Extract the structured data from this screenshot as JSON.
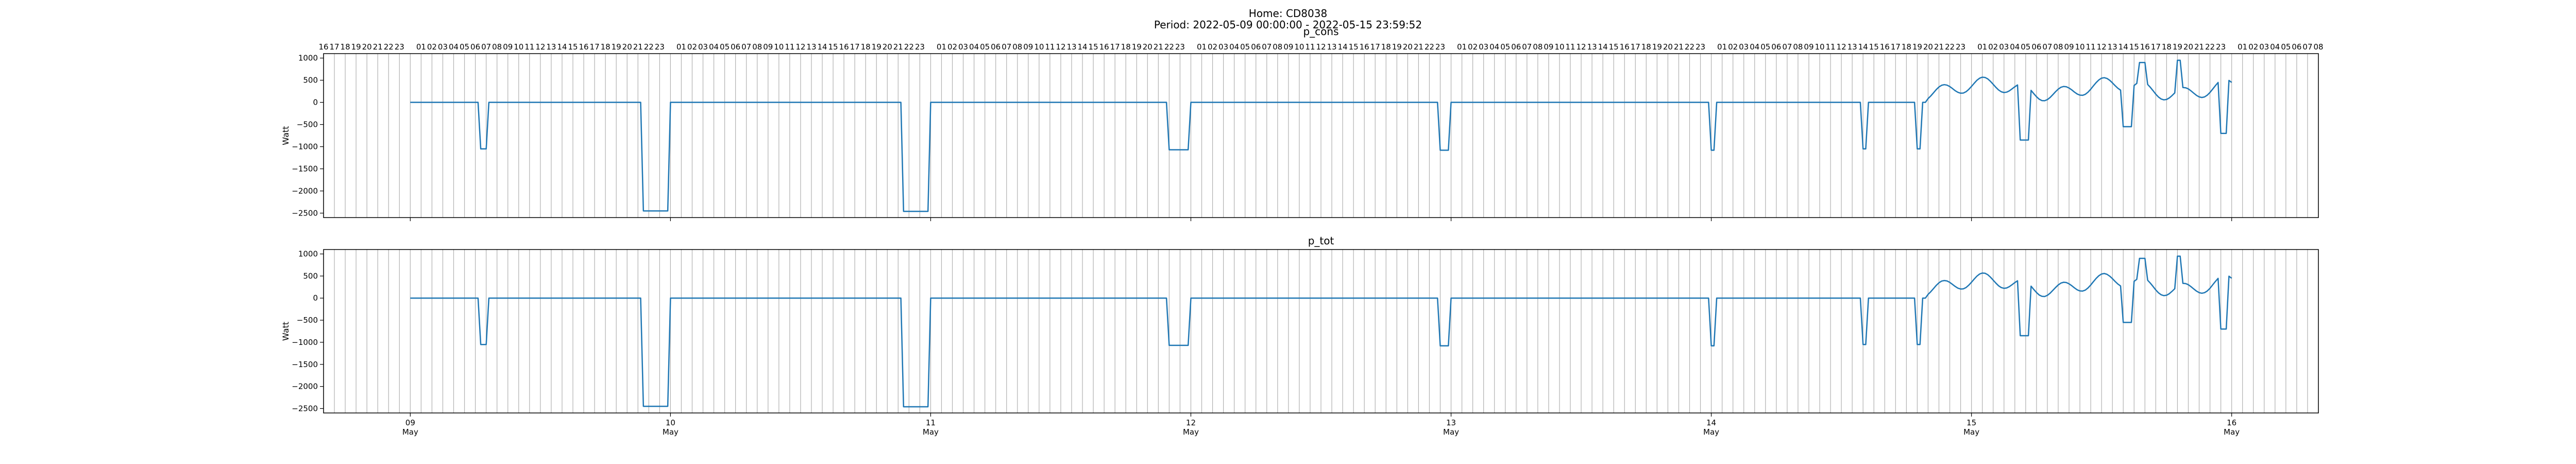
{
  "figure": {
    "title_line1": "Home: CD8038",
    "title_line2": "Period: 2022-05-09 00:00:00 - 2022-05-15 23:59:52"
  },
  "colors": {
    "series": "#1f77b4",
    "grid": "#b0b0b0",
    "axis": "#000000"
  },
  "chart_data": [
    {
      "type": "line",
      "title": "p_cons",
      "ylabel": "Watt",
      "show_xtick_labels": false,
      "show_top_hours": true,
      "xlim": [
        "2022-05-08 16:00",
        "2022-05-16 08:00"
      ],
      "ylim": [
        -2600,
        1100
      ],
      "yticks": [
        -2500,
        -2000,
        -1500,
        -1000,
        -500,
        0,
        500,
        1000
      ],
      "grid": "vertical hourly lines",
      "series": [
        {
          "x": [],
          "y": []
        }
      ]
    },
    {
      "type": "line",
      "title": "p_tot",
      "ylabel": "Watt",
      "show_xtick_labels": true,
      "show_top_hours": false,
      "xlim": [
        "2022-05-08 16:00",
        "2022-05-16 08:00"
      ],
      "ylim": [
        -2600,
        1100
      ],
      "yticks": [
        -2500,
        -2000,
        -1500,
        -1000,
        -500,
        0,
        500,
        1000
      ],
      "grid": "vertical hourly lines",
      "series": [
        {
          "x": [],
          "y": []
        }
      ]
    }
  ],
  "x_major_ticks": [
    {
      "day": "09",
      "month": "May",
      "date": "2022-05-09 00:00"
    },
    {
      "day": "10",
      "month": "May",
      "date": "2022-05-10 00:00"
    },
    {
      "day": "11",
      "month": "May",
      "date": "2022-05-11 00:00"
    },
    {
      "day": "12",
      "month": "May",
      "date": "2022-05-12 00:00"
    },
    {
      "day": "13",
      "month": "May",
      "date": "2022-05-13 00:00"
    },
    {
      "day": "14",
      "month": "May",
      "date": "2022-05-14 00:00"
    },
    {
      "day": "15",
      "month": "May",
      "date": "2022-05-15 00:00"
    },
    {
      "day": "16",
      "month": "May",
      "date": "2022-05-16 00:00"
    }
  ],
  "hour_labels": [
    "00",
    "01",
    "02",
    "03",
    "04",
    "05",
    "06",
    "07",
    "08",
    "09",
    "10",
    "11",
    "12",
    "13",
    "14",
    "15",
    "16",
    "17",
    "18",
    "19",
    "20",
    "21",
    "22",
    "23"
  ]
}
